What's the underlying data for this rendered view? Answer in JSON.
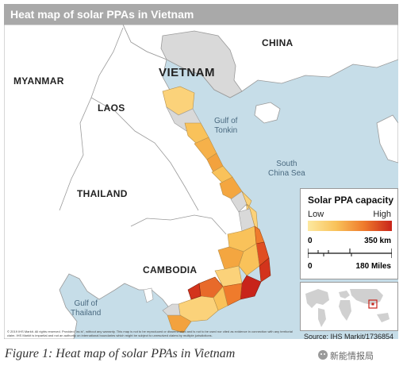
{
  "title": "Heat map of solar PPAs in Vietnam",
  "labels": {
    "china": "CHINA",
    "vietnam": "VIETNAM",
    "myanmar": "MYANMAR",
    "laos": "LAOS",
    "thailand": "THAILAND",
    "cambodia": "CAMBODIA",
    "gulf_tonkin": "Gulf of\nTonkin",
    "south_china_sea": "South\nChina Sea",
    "gulf_thailand": "Gulf of\nThailand"
  },
  "legend": {
    "title": "Solar PPA capacity",
    "low": "Low",
    "high": "High",
    "scale_zero_km": "0",
    "scale_km": "350 km",
    "scale_zero_mi": "0",
    "scale_mi": "180 Miles",
    "gradient_colors": [
      "#fde9a0",
      "#f9c25a",
      "#ef7b2c",
      "#c8241a"
    ]
  },
  "disclaimer": "© 2019 IHS Markit. All rights reserved. Provided \"as is\", without any warranty. This map is not to be reproduced or disseminated and is not to be used nor cited as evidence in connection with any territorial claim. IHS Markit is impartial and not an authority on international boundaries which might be subject to unresolved claims by multiple jurisdictions.",
  "source": "Source: IHS Markit/1736854",
  "caption": "Figure 1: Heat map of solar PPAs in Vietnam",
  "watermark": "新能情报局",
  "colors": {
    "sea": "#c6dde8",
    "land": "#ffffff",
    "neighbor": "#f4f4f4",
    "no_data": "#d9d9d9",
    "border": "#9a9a9a"
  }
}
